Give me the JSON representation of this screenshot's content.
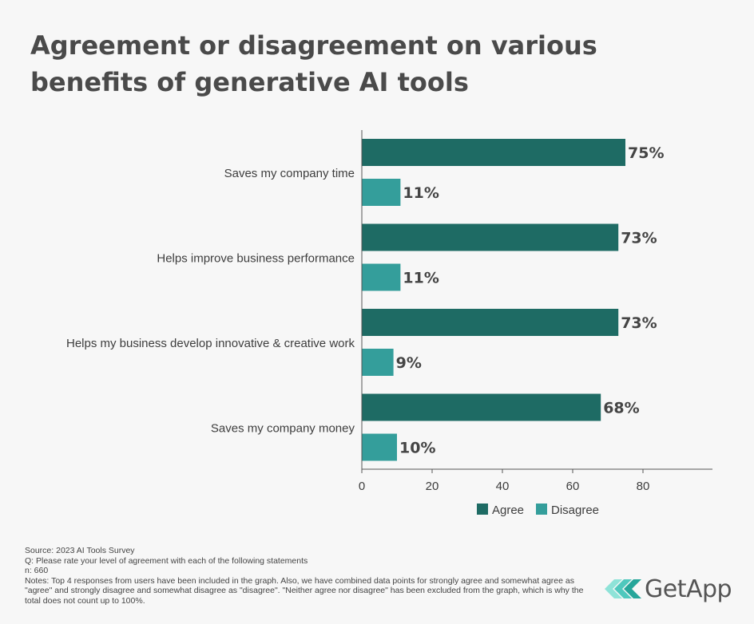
{
  "title": "Agreement or disagreement on various benefits of generative AI tools",
  "colors": {
    "agree": "#1e6b64",
    "disagree": "#349e9b",
    "axis": "#555555",
    "text": "#3d3d3d"
  },
  "chart_data": {
    "type": "bar",
    "orientation": "horizontal",
    "categories": [
      "Saves my company time",
      "Helps improve business performance",
      "Helps my business develop innovative & creative work",
      "Saves my company money"
    ],
    "series": [
      {
        "name": "Agree",
        "values": [
          75,
          73,
          73,
          68
        ],
        "labels": [
          "75%",
          "73%",
          "73%",
          "68%"
        ]
      },
      {
        "name": "Disagree",
        "values": [
          11,
          11,
          9,
          10
        ],
        "labels": [
          "11%",
          "11%",
          "9%",
          "10%"
        ]
      }
    ],
    "xlim": [
      0,
      100
    ],
    "xticks": [
      0,
      20,
      40,
      60,
      80
    ],
    "legend": "bottom",
    "xlabel": "",
    "ylabel": ""
  },
  "footer": {
    "source": "Source: 2023 AI Tools Survey",
    "question": "Q: Please rate your level of agreement with each of the following statements",
    "n": "n: 660",
    "notes": "Notes: Top 4 responses from users have been included in the graph. Also, we have combined data points for strongly agree and somewhat agree as \"agree\" and strongly disagree and somewhat disagree as \"disagree\". \"Neither agree nor disagree\" has been excluded from the graph, which is why the total does not count up to 100%."
  },
  "brand": {
    "name": "GetApp",
    "logo_icon": "getapp-chevrons-icon"
  }
}
